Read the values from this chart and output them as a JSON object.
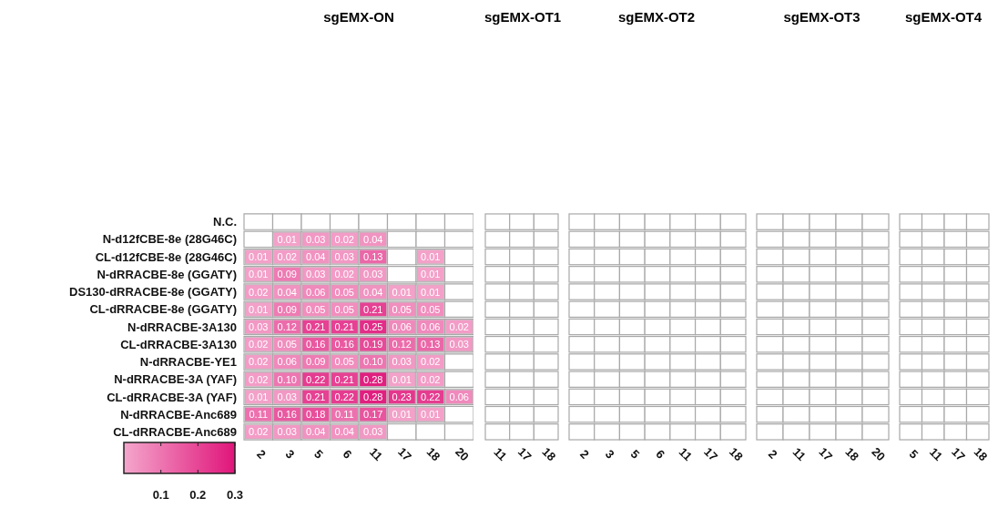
{
  "chart_data": [
    {
      "type": "heatmap",
      "title": "sgEMX-ON",
      "categories": [
        "2",
        "3",
        "5",
        "6",
        "11",
        "17",
        "18",
        "20"
      ],
      "y_categories": [
        "N.C.",
        "N-d12fCBE-8e (28G46C)",
        "CL-d12fCBE-8e (28G46C)",
        "N-dRRACBE-8e (GGATY)",
        "DS130-dRRACBE-8e (GGATY)",
        "CL-dRRACBE-8e (GGATY)",
        "N-dRRACBE-3A130",
        "CL-dRRACBE-3A130",
        "N-dRRACBE-YE1",
        "N-dRRACBE-3A (YAF)",
        "CL-dRRACBE-3A (YAF)",
        "N-dRRACBE-Anc689",
        "CL-dRRACBE-Anc689"
      ],
      "cells": [
        [
          null,
          null,
          null,
          null,
          null,
          null,
          null,
          null
        ],
        [
          null,
          0.01,
          0.03,
          0.02,
          0.04,
          null,
          null,
          null
        ],
        [
          0.01,
          0.02,
          0.04,
          0.03,
          0.13,
          null,
          0.01,
          null
        ],
        [
          0.01,
          0.09,
          0.03,
          0.02,
          0.03,
          null,
          0.01,
          null
        ],
        [
          0.02,
          0.04,
          0.06,
          0.05,
          0.04,
          0.01,
          0.01,
          null
        ],
        [
          0.01,
          0.09,
          0.05,
          0.05,
          0.21,
          0.05,
          0.05,
          null
        ],
        [
          0.03,
          0.12,
          0.21,
          0.21,
          0.25,
          0.06,
          0.06,
          0.02
        ],
        [
          0.02,
          0.05,
          0.16,
          0.16,
          0.19,
          0.12,
          0.13,
          0.03
        ],
        [
          0.02,
          0.06,
          0.09,
          0.05,
          0.1,
          0.03,
          0.02,
          null
        ],
        [
          0.02,
          0.1,
          0.22,
          0.21,
          0.28,
          0.01,
          0.02,
          null
        ],
        [
          0.01,
          0.03,
          0.21,
          0.22,
          0.28,
          0.23,
          0.22,
          0.06
        ],
        [
          0.11,
          0.16,
          0.18,
          0.11,
          0.17,
          0.01,
          0.01,
          null
        ],
        [
          0.02,
          0.03,
          0.04,
          0.04,
          0.03,
          null,
          null,
          null
        ]
      ],
      "cell_labels": [
        [
          null,
          null,
          null,
          null,
          null,
          null,
          null,
          null
        ],
        [
          null,
          "0.01",
          "0.03",
          "0.02",
          "0.04",
          null,
          null,
          null
        ],
        [
          "0.01",
          "0.02",
          "0.04",
          "0.03",
          "0.13",
          null,
          "0.01",
          null
        ],
        [
          "0.01",
          "0.09",
          "0.03",
          "0.02",
          "0.03",
          null,
          "0.01",
          null
        ],
        [
          "0.02",
          "0.04",
          "0.06",
          "0.05",
          "0.04",
          "0.01",
          "0.01",
          null
        ],
        [
          "0.01",
          "0.09",
          "0.05",
          "0.05",
          "0.21",
          "0.05",
          "0.05",
          null
        ],
        [
          "0.03",
          "0.12",
          "0.21",
          "0.21",
          "0.25",
          "0.06",
          "0.06",
          "0.02"
        ],
        [
          "0.02",
          "0.05",
          "0.16",
          "0.16",
          "0.19",
          "0.12",
          "0.13",
          "0.03"
        ],
        [
          "0.02",
          "0.06",
          "0.09",
          "0.05",
          "0.10",
          "0.03",
          "0.02",
          null
        ],
        [
          "0.02",
          "0.10",
          "0.22",
          "0.21",
          "0.28",
          "0.01",
          "0.02",
          null
        ],
        [
          "0.01",
          "0.03",
          "0.21",
          "0.22",
          "0.28",
          "0.23",
          "0.22",
          "0.06"
        ],
        [
          "0.11",
          "0.16",
          "0.18",
          "0.11",
          "0.17",
          "0.01",
          "0.01",
          null
        ],
        [
          "0.02",
          "0.03",
          "0.04",
          "0.04",
          "0.03",
          null,
          null,
          null
        ]
      ],
      "clim": [
        0,
        0.3
      ],
      "cticks": [
        0.1,
        0.2,
        0.3
      ]
    },
    {
      "type": "other",
      "title": "sgEMX-OT1",
      "categories": [
        "11",
        "17",
        "18"
      ]
    },
    {
      "type": "other",
      "title": "sgEMX-OT2",
      "categories": [
        "2",
        "3",
        "5",
        "6",
        "11",
        "17",
        "18"
      ]
    },
    {
      "type": "other",
      "title": "sgEMX-OT3",
      "categories": [
        "2",
        "11",
        "17",
        "18",
        "20"
      ]
    },
    {
      "type": "other",
      "title": "sgEMX-OT4",
      "categories": [
        "5",
        "11",
        "17",
        "18"
      ]
    }
  ]
}
